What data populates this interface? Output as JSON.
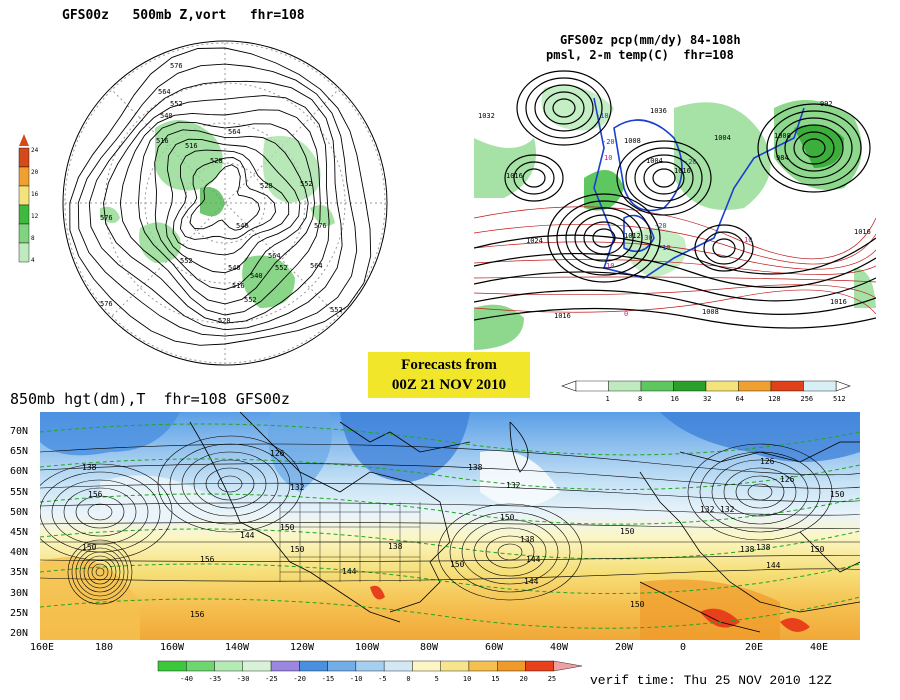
{
  "panel_500mb": {
    "title": "GFS00z   500mb Z,vort   fhr=108",
    "legend_values": [
      "24",
      "20",
      "16",
      "12",
      "8",
      "4"
    ],
    "legend_colors": [
      "#d44a1a",
      "#f0a030",
      "#f3e37a",
      "#3fba3f",
      "#7fd47f",
      "#bfeabf"
    ],
    "contour_labels": [
      "576",
      "564",
      "552",
      "540",
      "516",
      "528",
      "564",
      "552",
      "516",
      "528",
      "540",
      "552",
      "564",
      "576",
      "540",
      "552",
      "552",
      "528",
      "540",
      "516",
      "564",
      "552",
      "576",
      "576"
    ]
  },
  "panel_pcp": {
    "title_line1": "GFS00z pcp(mm/dy) 84-108h",
    "title_line2": "pmsl, 2-m temp(C)  fhr=108",
    "pressure_labels": [
      "1032",
      "1016",
      "1024",
      "1008",
      "1004",
      "1012",
      "1016",
      "1016",
      "1008",
      "1004",
      "992",
      "984",
      "1016",
      "1016",
      "1008",
      "1036"
    ],
    "temp_labels": [
      "-10",
      "-20",
      "10",
      "-20",
      "-30",
      "-20",
      "-10",
      "10",
      "10",
      "0"
    ],
    "colorbar_values": [
      "1",
      "8",
      "16",
      "32",
      "64",
      "128",
      "256",
      "512"
    ],
    "colorbar_colors": [
      "#ffffff",
      "#bfeabf",
      "#5fc75f",
      "#2aa02a",
      "#f3e37a",
      "#f0a030",
      "#e0401a",
      "#d8f0f5"
    ]
  },
  "stamp": {
    "line1": "Forecasts from",
    "line2": "00Z 21 NOV 2010"
  },
  "panel_850mb": {
    "title": "850mb hgt(dm),T  fhr=108 GFS00z",
    "lat_labels": [
      "70N",
      "65N",
      "60N",
      "55N",
      "50N",
      "45N",
      "40N",
      "35N",
      "30N",
      "25N",
      "20N"
    ],
    "lon_labels": [
      "160E",
      "180",
      "160W",
      "140W",
      "120W",
      "100W",
      "80W",
      "60W",
      "40W",
      "20W",
      "0",
      "20E",
      "40E"
    ],
    "height_labels": [
      "138",
      "126",
      "156",
      "150",
      "150",
      "144",
      "132",
      "150",
      "150",
      "138",
      "144",
      "132",
      "138",
      "126",
      "150",
      "156",
      "144",
      "138",
      "132",
      "126",
      "138",
      "150",
      "144",
      "132",
      "138",
      "150",
      "150",
      "144",
      "156",
      "150"
    ],
    "colorbar_values": [
      "-40",
      "-35",
      "-30",
      "-25",
      "-20",
      "-15",
      "-10",
      "-5",
      "0",
      "5",
      "10",
      "15",
      "20",
      "25"
    ],
    "colorbar_colors": [
      "#3cc83c",
      "#6ed66e",
      "#b4eab4",
      "#d8f2d8",
      "#9b86e0",
      "#4a90e0",
      "#72aee8",
      "#a6cef0",
      "#d2e8f5",
      "#fbf6c4",
      "#f6e58c",
      "#f5c050",
      "#f09a2a",
      "#e8401a",
      "#f0a0a0"
    ],
    "verif": "verif time: Thu 25 NOV 2010 12Z"
  }
}
